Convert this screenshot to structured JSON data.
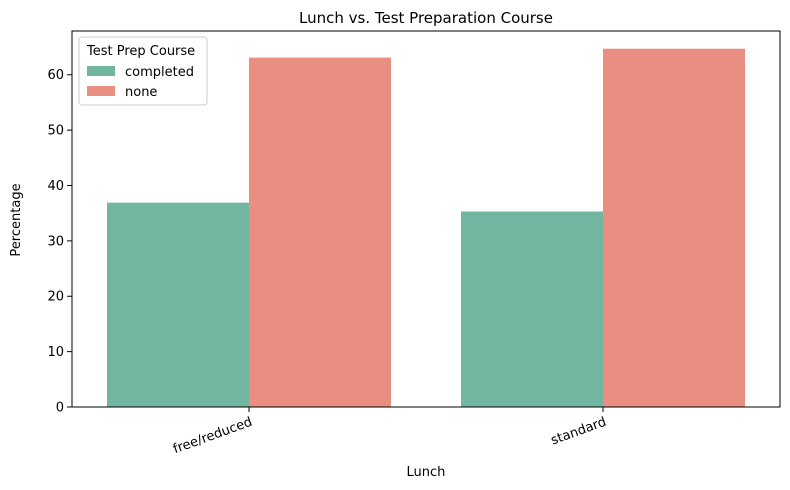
{
  "chart_data": {
    "type": "bar",
    "title": "Lunch vs. Test Preparation Course",
    "xlabel": "Lunch",
    "ylabel": "Percentage",
    "categories": [
      "free/reduced",
      "standard"
    ],
    "series": [
      {
        "name": "completed",
        "values": [
          36.9,
          35.3
        ],
        "color": "#72b6a1"
      },
      {
        "name": "none",
        "values": [
          63.1,
          64.7
        ],
        "color": "#e98f82"
      }
    ],
    "ylim": [
      0,
      67.9
    ],
    "yticks": [
      0,
      10,
      20,
      30,
      40,
      50,
      60
    ],
    "legend": {
      "title": "Test Prep Course",
      "placement": "top-left"
    },
    "grid": false
  }
}
